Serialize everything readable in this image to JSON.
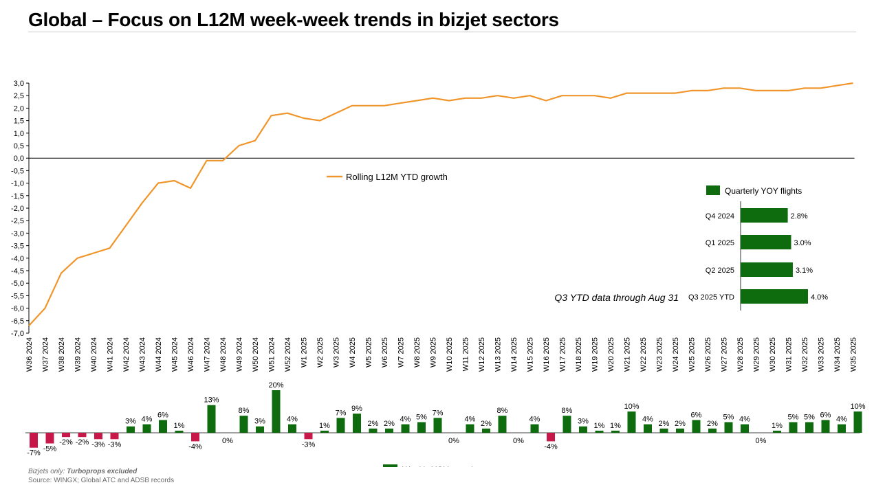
{
  "title": "Global – Focus on L12M week-week trends in bizjet sectors",
  "footnote": {
    "note_prefix": "Bizjets only:",
    "note_bold": "Turboprops excluded",
    "source": "Source: WINGX; Global ATC and ADSB records"
  },
  "colors": {
    "line": "#f0952a",
    "positive": "#0e6b0e",
    "negative": "#c8184a",
    "axis": "#000000"
  },
  "chart_data": [
    {
      "type": "line",
      "categories": [
        "W36 2024",
        "W37 2024",
        "W38 2024",
        "W39 2024",
        "W40 2024",
        "W41 2024",
        "W42 2024",
        "W43 2024",
        "W44 2024",
        "W45 2024",
        "W46 2024",
        "W47 2024",
        "W48 2024",
        "W49 2024",
        "W50 2024",
        "W51 2024",
        "W52 2024",
        "W1 2025",
        "W2 2025",
        "W3 2025",
        "W4 2025",
        "W5 2025",
        "W6 2025",
        "W7 2025",
        "W8 2025",
        "W9 2025",
        "W10 2025",
        "W11 2025",
        "W12 2025",
        "W13 2025",
        "W14 2025",
        "W15 2025",
        "W16 2025",
        "W17 2025",
        "W18 2025",
        "W19 2025",
        "W20 2025",
        "W21 2025",
        "W22 2025",
        "W23 2025",
        "W24 2025",
        "W25 2025",
        "W26 2025",
        "W27 2025",
        "W28 2025",
        "W29 2025",
        "W30 2025",
        "W31 2025",
        "W32 2025",
        "W33 2025",
        "W34 2025",
        "W35 2025"
      ],
      "series": [
        {
          "name": "Rolling L12M YTD growth",
          "values": [
            -6.7,
            -6.0,
            -4.6,
            -4.0,
            -3.8,
            -3.6,
            -2.7,
            -1.8,
            -1.0,
            -0.9,
            -1.2,
            -0.1,
            -0.1,
            0.5,
            0.7,
            1.7,
            1.8,
            1.6,
            1.5,
            1.8,
            2.1,
            2.1,
            2.1,
            2.2,
            2.3,
            2.4,
            2.3,
            2.4,
            2.4,
            2.5,
            2.4,
            2.5,
            2.3,
            2.5,
            2.5,
            2.5,
            2.4,
            2.6,
            2.6,
            2.6,
            2.6,
            2.7,
            2.7,
            2.8,
            2.8,
            2.7,
            2.7,
            2.7,
            2.8,
            2.8,
            2.9,
            3.0
          ]
        }
      ],
      "ylim": [
        -7.0,
        3.0
      ],
      "yticks": [
        "3,0",
        "2,5",
        "2,0",
        "1,5",
        "1,0",
        "0,5",
        "0,0",
        "-0,5",
        "-1,0",
        "-1,5",
        "-2,0",
        "-2,5",
        "-3,0",
        "-3,5",
        "-4,0",
        "-4,5",
        "-5,0",
        "-5,5",
        "-6,0",
        "-6,5",
        "-7,0"
      ],
      "legend": "center"
    },
    {
      "type": "bar",
      "series": [
        {
          "name": "Weekly YOY growth",
          "values": [
            -7,
            -5,
            -2,
            -2,
            -3,
            -3,
            3,
            4,
            6,
            1,
            -4,
            13,
            0,
            8,
            3,
            20,
            4,
            -3,
            1,
            7,
            9,
            2,
            2,
            4,
            5,
            7,
            0,
            4,
            2,
            8,
            0,
            4,
            -4,
            8,
            3,
            1,
            1,
            10,
            4,
            2,
            2,
            6,
            2,
            5,
            4,
            0,
            1,
            5,
            5,
            6,
            4,
            10
          ],
          "labels": [
            "-7%",
            "-5%",
            "-2%",
            "-2%",
            "-3%",
            "-3%",
            "3%",
            "4%",
            "6%",
            "1%",
            "-4%",
            "13%",
            "0%",
            "8%",
            "3%",
            "20%",
            "4%",
            "-3%",
            "1%",
            "7%",
            "9%",
            "2%",
            "2%",
            "4%",
            "5%",
            "7%",
            "0%",
            "4%",
            "2%",
            "8%",
            "0%",
            "4%",
            "-4%",
            "8%",
            "3%",
            "1%",
            "1%",
            "10%",
            "4%",
            "2%",
            "2%",
            "6%",
            "2%",
            "5%",
            "4%",
            "0%",
            "1%",
            "5%",
            "5%",
            "6%",
            "4%",
            "10%"
          ]
        }
      ],
      "legend": "bottom"
    },
    {
      "type": "bar",
      "orientation": "horizontal",
      "categories": [
        "Q4 2024",
        "Q1 2025",
        "Q2 2025",
        "Q3 2025 YTD"
      ],
      "series": [
        {
          "name": "Quarterly YOY flights",
          "values": [
            2.8,
            3.0,
            3.1,
            4.0
          ],
          "labels": [
            "2.8%",
            "3.0%",
            "3.1%",
            "4.0%"
          ]
        }
      ],
      "annotation": "Q3 YTD data through Aug 31",
      "legend": "top"
    }
  ]
}
